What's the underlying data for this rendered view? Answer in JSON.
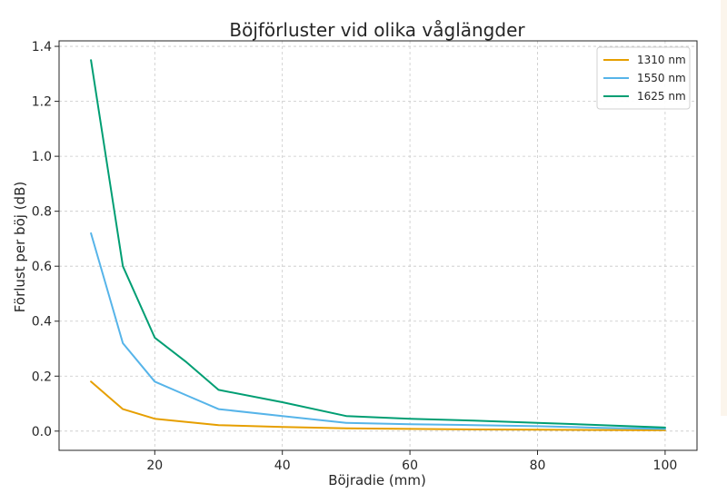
{
  "chart_data": {
    "type": "line",
    "title": "Böjförluster vid olika våglängder",
    "xlabel": "Böjradie (mm)",
    "ylabel": "Förlust per böj (dB)",
    "xlim": [
      5,
      105
    ],
    "ylim": [
      -0.07,
      1.42
    ],
    "xticks": [
      20,
      40,
      60,
      80,
      100
    ],
    "yticks": [
      0.0,
      0.2,
      0.4,
      0.6,
      0.8,
      1.0,
      1.2,
      1.4
    ],
    "ytick_labels": [
      "0.0",
      "0.2",
      "0.4",
      "0.6",
      "0.8",
      "1.0",
      "1.2",
      "1.4"
    ],
    "grid": true,
    "legend_position": "top-right",
    "x": [
      10,
      15,
      20,
      25,
      30,
      40,
      50,
      60,
      70,
      80,
      90,
      100
    ],
    "series": [
      {
        "name": "1310 nm",
        "color": "#E69F00",
        "values": [
          0.18,
          0.08,
          0.045,
          0.033,
          0.022,
          0.015,
          0.01,
          0.008,
          0.006,
          0.005,
          0.004,
          0.003
        ]
      },
      {
        "name": "1550 nm",
        "color": "#56B4E9",
        "values": [
          0.72,
          0.32,
          0.18,
          0.13,
          0.08,
          0.055,
          0.03,
          0.025,
          0.022,
          0.018,
          0.012,
          0.008
        ]
      },
      {
        "name": "1625 nm",
        "color": "#009E73",
        "values": [
          1.35,
          0.6,
          0.34,
          0.25,
          0.15,
          0.105,
          0.055,
          0.045,
          0.038,
          0.03,
          0.022,
          0.013
        ]
      }
    ]
  }
}
